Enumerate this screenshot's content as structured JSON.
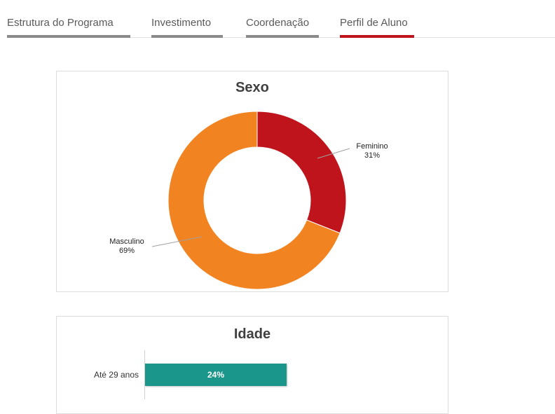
{
  "tabs": [
    {
      "label": "Estrutura do Programa",
      "active": false
    },
    {
      "label": "Investimento",
      "active": false
    },
    {
      "label": "Coordenação",
      "active": false
    },
    {
      "label": "Perfil de Aluno",
      "active": true
    }
  ],
  "colors": {
    "accent_red": "#c0141d",
    "masculino": "#f28321",
    "feminino": "#c0141d",
    "bar_teal": "#1a968a",
    "tab_gray": "#8a8a8a"
  },
  "chart_data": [
    {
      "type": "pie",
      "variant": "donut",
      "title": "Sexo",
      "slices": [
        {
          "label": "Feminino",
          "value": 31,
          "display": "31%"
        },
        {
          "label": "Masculino",
          "value": 69,
          "display": "69%"
        }
      ]
    },
    {
      "type": "bar",
      "orientation": "horizontal",
      "title": "Idade",
      "categories": [
        "Até 29 anos"
      ],
      "values": [
        24
      ],
      "value_labels": [
        "24%"
      ]
    }
  ]
}
